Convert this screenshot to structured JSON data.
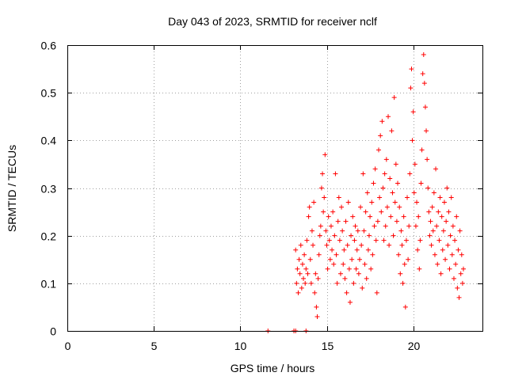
{
  "chart_data": {
    "type": "scatter",
    "title": "Day 043 of 2023, SRMTID for receiver nclf",
    "xlabel": "GPS time / hours",
    "ylabel": "SRMTID / TECUs",
    "xlim": [
      0,
      24
    ],
    "ylim": [
      0,
      0.6
    ],
    "xticks": [
      0,
      5,
      10,
      15,
      20
    ],
    "yticks": [
      0,
      0.1,
      0.2,
      0.3,
      0.4,
      0.5,
      0.6
    ],
    "xtick_labels": [
      "0",
      "5",
      "10",
      "15",
      "20"
    ],
    "ytick_labels": [
      "0",
      "0.1",
      "0.2",
      "0.3",
      "0.4",
      "0.5",
      "0.6"
    ],
    "grid": true,
    "marker": "+",
    "color": "#ff0000",
    "series": [
      {
        "name": "SRMTID",
        "points": [
          [
            11.6,
            0.0
          ],
          [
            13.1,
            0.0
          ],
          [
            13.2,
            0.0
          ],
          [
            13.8,
            0.0
          ],
          [
            13.2,
            0.17
          ],
          [
            13.25,
            0.1
          ],
          [
            13.3,
            0.13
          ],
          [
            13.35,
            0.08
          ],
          [
            13.4,
            0.15
          ],
          [
            13.45,
            0.12
          ],
          [
            13.5,
            0.18
          ],
          [
            13.55,
            0.09
          ],
          [
            13.6,
            0.14
          ],
          [
            13.65,
            0.11
          ],
          [
            13.7,
            0.16
          ],
          [
            13.75,
            0.1
          ],
          [
            13.8,
            0.13
          ],
          [
            13.85,
            0.19
          ],
          [
            13.9,
            0.12
          ],
          [
            13.95,
            0.24
          ],
          [
            14.0,
            0.26
          ],
          [
            14.05,
            0.15
          ],
          [
            14.1,
            0.1
          ],
          [
            14.15,
            0.21
          ],
          [
            14.2,
            0.18
          ],
          [
            14.25,
            0.27
          ],
          [
            14.3,
            0.08
          ],
          [
            14.35,
            0.12
          ],
          [
            14.4,
            0.05
          ],
          [
            14.45,
            0.03
          ],
          [
            14.5,
            0.11
          ],
          [
            14.55,
            0.16
          ],
          [
            14.6,
            0.2
          ],
          [
            14.65,
            0.22
          ],
          [
            14.7,
            0.3
          ],
          [
            14.75,
            0.33
          ],
          [
            14.8,
            0.25
          ],
          [
            14.85,
            0.28
          ],
          [
            14.9,
            0.37
          ],
          [
            14.95,
            0.21
          ],
          [
            15.0,
            0.18
          ],
          [
            15.05,
            0.13
          ],
          [
            15.1,
            0.24
          ],
          [
            15.15,
            0.19
          ],
          [
            15.2,
            0.15
          ],
          [
            15.25,
            0.22
          ],
          [
            15.3,
            0.17
          ],
          [
            15.35,
            0.25
          ],
          [
            15.4,
            0.14
          ],
          [
            15.45,
            0.2
          ],
          [
            15.5,
            0.33
          ],
          [
            15.55,
            0.16
          ],
          [
            15.6,
            0.1
          ],
          [
            15.65,
            0.23
          ],
          [
            15.7,
            0.28
          ],
          [
            15.75,
            0.19
          ],
          [
            15.8,
            0.12
          ],
          [
            15.85,
            0.26
          ],
          [
            15.9,
            0.21
          ],
          [
            15.95,
            0.14
          ],
          [
            16.0,
            0.17
          ],
          [
            16.05,
            0.11
          ],
          [
            16.1,
            0.23
          ],
          [
            16.15,
            0.08
          ],
          [
            16.2,
            0.18
          ],
          [
            16.25,
            0.27
          ],
          [
            16.3,
            0.13
          ],
          [
            16.35,
            0.06
          ],
          [
            16.4,
            0.2
          ],
          [
            16.45,
            0.15
          ],
          [
            16.5,
            0.24
          ],
          [
            16.55,
            0.1
          ],
          [
            16.6,
            0.19
          ],
          [
            16.65,
            0.22
          ],
          [
            16.7,
            0.13
          ],
          [
            16.75,
            0.17
          ],
          [
            16.8,
            0.21
          ],
          [
            16.85,
            0.12
          ],
          [
            16.9,
            0.15
          ],
          [
            16.95,
            0.26
          ],
          [
            17.0,
            0.18
          ],
          [
            17.05,
            0.09
          ],
          [
            17.1,
            0.33
          ],
          [
            17.15,
            0.21
          ],
          [
            17.2,
            0.14
          ],
          [
            17.25,
            0.25
          ],
          [
            17.3,
            0.11
          ],
          [
            17.35,
            0.29
          ],
          [
            17.4,
            0.17
          ],
          [
            17.45,
            0.2
          ],
          [
            17.5,
            0.24
          ],
          [
            17.55,
            0.13
          ],
          [
            17.6,
            0.27
          ],
          [
            17.65,
            0.16
          ],
          [
            17.7,
            0.31
          ],
          [
            17.75,
            0.22
          ],
          [
            17.8,
            0.34
          ],
          [
            17.85,
            0.19
          ],
          [
            17.9,
            0.08
          ],
          [
            17.95,
            0.23
          ],
          [
            18.0,
            0.38
          ],
          [
            18.05,
            0.28
          ],
          [
            18.1,
            0.41
          ],
          [
            18.15,
            0.25
          ],
          [
            18.2,
            0.44
          ],
          [
            18.25,
            0.3
          ],
          [
            18.3,
            0.19
          ],
          [
            18.35,
            0.33
          ],
          [
            18.4,
            0.22
          ],
          [
            18.45,
            0.36
          ],
          [
            18.5,
            0.26
          ],
          [
            18.55,
            0.45
          ],
          [
            18.6,
            0.18
          ],
          [
            18.65,
            0.32
          ],
          [
            18.7,
            0.24
          ],
          [
            18.75,
            0.42
          ],
          [
            18.8,
            0.29
          ],
          [
            18.85,
            0.2
          ],
          [
            18.9,
            0.49
          ],
          [
            18.95,
            0.27
          ],
          [
            19.0,
            0.35
          ],
          [
            19.05,
            0.23
          ],
          [
            19.1,
            0.31
          ],
          [
            19.15,
            0.16
          ],
          [
            19.2,
            0.26
          ],
          [
            19.25,
            0.12
          ],
          [
            19.3,
            0.21
          ],
          [
            19.35,
            0.18
          ],
          [
            19.4,
            0.1
          ],
          [
            19.45,
            0.24
          ],
          [
            19.5,
            0.14
          ],
          [
            19.55,
            0.05
          ],
          [
            19.6,
            0.19
          ],
          [
            19.65,
            0.28
          ],
          [
            19.7,
            0.15
          ],
          [
            19.75,
            0.22
          ],
          [
            19.8,
            0.33
          ],
          [
            19.85,
            0.51
          ],
          [
            19.9,
            0.55
          ],
          [
            19.95,
            0.4
          ],
          [
            20.0,
            0.46
          ],
          [
            20.05,
            0.29
          ],
          [
            20.1,
            0.35
          ],
          [
            20.15,
            0.22
          ],
          [
            20.2,
            0.27
          ],
          [
            20.25,
            0.17
          ],
          [
            20.3,
            0.24
          ],
          [
            20.35,
            0.13
          ],
          [
            20.4,
            0.19
          ],
          [
            20.45,
            0.31
          ],
          [
            20.5,
            0.38
          ],
          [
            20.55,
            0.54
          ],
          [
            20.6,
            0.58
          ],
          [
            20.65,
            0.52
          ],
          [
            20.7,
            0.47
          ],
          [
            20.75,
            0.42
          ],
          [
            20.8,
            0.36
          ],
          [
            20.85,
            0.3
          ],
          [
            20.9,
            0.25
          ],
          [
            20.95,
            0.2
          ],
          [
            21.0,
            0.23
          ],
          [
            21.05,
            0.18
          ],
          [
            21.1,
            0.26
          ],
          [
            21.15,
            0.21
          ],
          [
            21.2,
            0.29
          ],
          [
            21.25,
            0.16
          ],
          [
            21.3,
            0.34
          ],
          [
            21.35,
            0.22
          ],
          [
            21.4,
            0.14
          ],
          [
            21.45,
            0.25
          ],
          [
            21.5,
            0.19
          ],
          [
            21.55,
            0.28
          ],
          [
            21.6,
            0.12
          ],
          [
            21.65,
            0.24
          ],
          [
            21.7,
            0.17
          ],
          [
            21.75,
            0.21
          ],
          [
            21.8,
            0.27
          ],
          [
            21.85,
            0.15
          ],
          [
            21.9,
            0.23
          ],
          [
            21.95,
            0.3
          ],
          [
            22.0,
            0.18
          ],
          [
            22.05,
            0.25
          ],
          [
            22.1,
            0.13
          ],
          [
            22.15,
            0.2
          ],
          [
            22.2,
            0.28
          ],
          [
            22.25,
            0.16
          ],
          [
            22.3,
            0.22
          ],
          [
            22.35,
            0.11
          ],
          [
            22.4,
            0.19
          ],
          [
            22.45,
            0.14
          ],
          [
            22.5,
            0.24
          ],
          [
            22.55,
            0.09
          ],
          [
            22.6,
            0.17
          ],
          [
            22.65,
            0.07
          ],
          [
            22.7,
            0.21
          ],
          [
            22.75,
            0.12
          ],
          [
            22.8,
            0.16
          ],
          [
            22.85,
            0.1
          ],
          [
            22.9,
            0.13
          ]
        ]
      }
    ]
  }
}
